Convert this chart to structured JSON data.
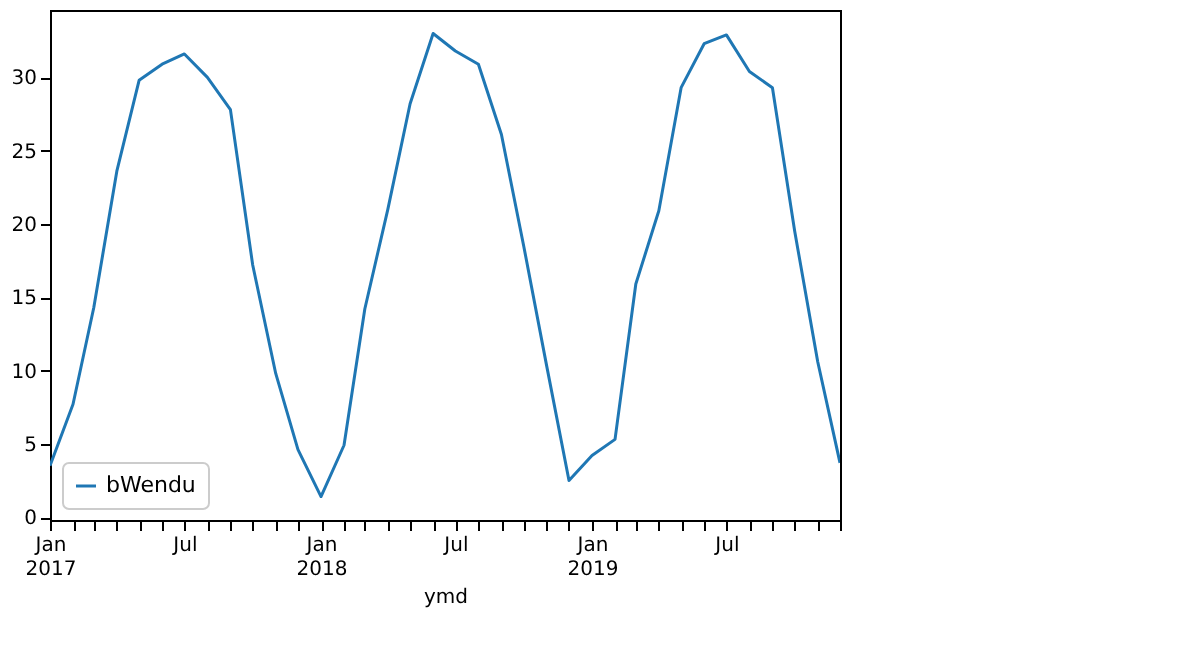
{
  "chart_data": {
    "type": "line",
    "xlabel": "ymd",
    "x": [
      "2017-01",
      "2017-02",
      "2017-03",
      "2017-04",
      "2017-05",
      "2017-06",
      "2017-07",
      "2017-08",
      "2017-09",
      "2017-10",
      "2017-11",
      "2017-12",
      "2018-01",
      "2018-02",
      "2018-03",
      "2018-04",
      "2018-05",
      "2018-06",
      "2018-07",
      "2018-08",
      "2018-09",
      "2018-10",
      "2018-11",
      "2018-12",
      "2019-01",
      "2019-02",
      "2019-03",
      "2019-04",
      "2019-05",
      "2019-06",
      "2019-07",
      "2019-08",
      "2019-09",
      "2019-10",
      "2019-11",
      "2019-12"
    ],
    "series": [
      {
        "name": "bWendu",
        "color": "#1f77b4",
        "values": [
          3.5,
          7.7,
          14.3,
          23.6,
          29.8,
          30.9,
          31.6,
          30.0,
          27.8,
          17.2,
          9.8,
          4.6,
          1.4,
          4.9,
          14.2,
          21.0,
          28.2,
          33.0,
          31.8,
          30.9,
          26.1,
          18.5,
          10.3,
          2.5,
          4.2,
          5.3,
          15.9,
          20.9,
          29.3,
          32.3,
          32.9,
          30.4,
          29.3,
          19.5,
          10.6,
          3.7
        ]
      }
    ],
    "xlim": [
      "2017-01",
      "2019-12"
    ],
    "xticks": [
      {
        "value": "2017-01",
        "label": "Jan\n2017"
      },
      {
        "value": "2017-02",
        "label": null
      },
      {
        "value": "2017-03",
        "label": null
      },
      {
        "value": "2017-04",
        "label": null
      },
      {
        "value": "2017-05",
        "label": null
      },
      {
        "value": "2017-06",
        "label": null
      },
      {
        "value": "2017-07",
        "label": "Jul"
      },
      {
        "value": "2017-08",
        "label": null
      },
      {
        "value": "2017-09",
        "label": null
      },
      {
        "value": "2017-10",
        "label": null
      },
      {
        "value": "2017-11",
        "label": null
      },
      {
        "value": "2017-12",
        "label": null
      },
      {
        "value": "2018-01",
        "label": "Jan\n2018"
      },
      {
        "value": "2018-02",
        "label": null
      },
      {
        "value": "2018-03",
        "label": null
      },
      {
        "value": "2018-04",
        "label": null
      },
      {
        "value": "2018-05",
        "label": null
      },
      {
        "value": "2018-06",
        "label": null
      },
      {
        "value": "2018-07",
        "label": "Jul"
      },
      {
        "value": "2018-08",
        "label": null
      },
      {
        "value": "2018-09",
        "label": null
      },
      {
        "value": "2018-10",
        "label": null
      },
      {
        "value": "2018-11",
        "label": null
      },
      {
        "value": "2018-12",
        "label": null
      },
      {
        "value": "2019-01",
        "label": "Jan\n2019"
      },
      {
        "value": "2019-02",
        "label": null
      },
      {
        "value": "2019-03",
        "label": null
      },
      {
        "value": "2019-04",
        "label": null
      },
      {
        "value": "2019-05",
        "label": null
      },
      {
        "value": "2019-06",
        "label": null
      },
      {
        "value": "2019-07",
        "label": "Jul"
      },
      {
        "value": "2019-08",
        "label": null
      },
      {
        "value": "2019-09",
        "label": null
      },
      {
        "value": "2019-10",
        "label": null
      },
      {
        "value": "2019-11",
        "label": null
      },
      {
        "value": "2019-12",
        "label": null
      }
    ],
    "ylim": [
      -0.2,
      34.6
    ],
    "yticks": [
      0,
      5,
      10,
      15,
      20,
      25,
      30
    ],
    "legend": "bottom left",
    "grid": false,
    "line_style": "solid"
  }
}
